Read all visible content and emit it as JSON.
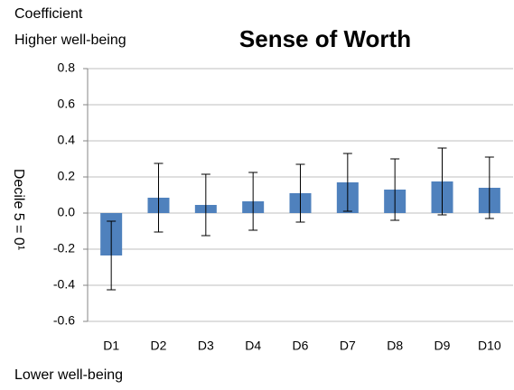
{
  "chart_data": {
    "type": "bar",
    "title": "Sense of Worth",
    "subtitle": "Coefficient",
    "annotations": [
      "Higher well-being",
      "Lower well-being"
    ],
    "y_label": "Decile 5 = 0¹",
    "categories": [
      "D1",
      "D2",
      "D3",
      "D4",
      "D6",
      "D7",
      "D8",
      "D9",
      "D10"
    ],
    "values": [
      -0.235,
      0.085,
      0.045,
      0.065,
      0.11,
      0.17,
      0.13,
      0.175,
      0.14
    ],
    "errors": [
      0.19,
      0.19,
      0.17,
      0.16,
      0.16,
      0.16,
      0.17,
      0.185,
      0.17
    ],
    "color": "#4f81bd",
    "ylim": [
      -0.6,
      0.8
    ],
    "yticks": [
      -0.6,
      -0.4,
      -0.2,
      {
        "value": 0,
        "label": "0.0"
      },
      0.2,
      0.4,
      0.6,
      0.8
    ],
    "grid": true
  }
}
